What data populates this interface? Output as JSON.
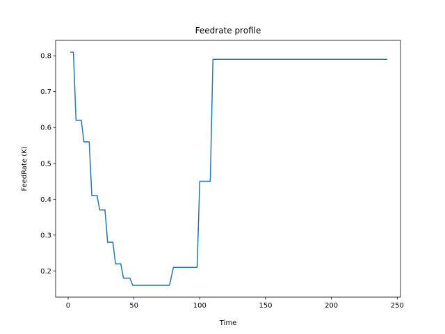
{
  "chart_data": {
    "type": "line",
    "title": "Feedrate profile",
    "xlabel": "Time",
    "ylabel": "FeedRate (K)",
    "xlim": [
      -9.5,
      252.5
    ],
    "ylim": [
      0.127,
      0.843
    ],
    "xticks": [
      0,
      50,
      100,
      150,
      200,
      250
    ],
    "yticks": [
      0.2,
      0.3,
      0.4,
      0.5,
      0.6,
      0.7,
      0.8
    ],
    "xtick_labels": [
      "0",
      "50",
      "100",
      "150",
      "200",
      "250"
    ],
    "ytick_labels": [
      "0.2",
      "0.3",
      "0.4",
      "0.5",
      "0.6",
      "0.7",
      "0.8"
    ],
    "grid": false,
    "series": [
      {
        "color": "#1f77b4",
        "x": [
          2,
          4,
          6,
          10,
          12,
          16,
          18,
          22,
          24,
          28,
          30,
          34,
          36,
          40,
          42,
          47,
          49,
          77,
          80,
          98,
          100,
          108,
          110,
          242
        ],
        "y": [
          0.81,
          0.81,
          0.62,
          0.62,
          0.56,
          0.56,
          0.41,
          0.41,
          0.37,
          0.37,
          0.28,
          0.28,
          0.22,
          0.22,
          0.18,
          0.18,
          0.16,
          0.16,
          0.21,
          0.21,
          0.45,
          0.45,
          0.79,
          0.79
        ]
      }
    ]
  }
}
